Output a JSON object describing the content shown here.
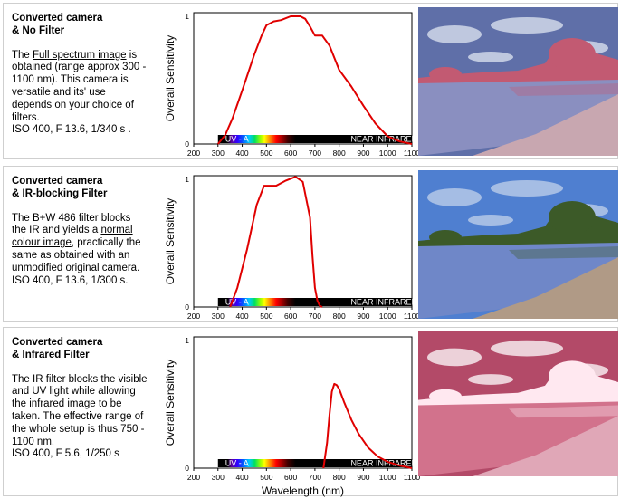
{
  "panels": [
    {
      "title_line1": "Converted camera",
      "title_line2": "& No Filter",
      "text_1": "The ",
      "link": "Full spectrum image",
      "text_2": " is obtained (range approx 300 - 1100 nm). This camera is versatile and its' use depends on your choice of filters.",
      "settings": "ISO 400, F 13.6, 1/340 s ."
    },
    {
      "title_line1": "Converted camera",
      "title_line2": "& IR-blocking Filter",
      "text_1": "The B+W 486 filter blocks the IR and yields a ",
      "link": "normal colour image",
      "text_2": ", practically the same as obtained with an unmodified original camera.",
      "settings": "ISO 400, F 13.6, 1/300 s."
    },
    {
      "title_line1": "Converted camera",
      "title_line2": "& Infrared Filter",
      "text_1": "The IR filter blocks the visible and UV light while allowing the ",
      "link": "infrared image",
      "text_2": " to be taken. The effective range of the whole setup is thus 750 - 1100 nm.",
      "settings": "ISO 400, F 5.6, 1/250 s"
    }
  ],
  "band": {
    "uv_label": "UV - A",
    "ir_label": "NEAR INFRARED"
  },
  "chart_data": [
    {
      "type": "line",
      "ylabel": "Overall Sensitivity",
      "xlabel": "",
      "xlim": [
        200,
        1100
      ],
      "ylim": [
        0,
        1
      ],
      "x_ticks": [
        "200",
        "300",
        "400",
        "500",
        "600",
        "700",
        "800",
        "900",
        "1000",
        "1100"
      ],
      "y_ticks": [
        "0",
        "1"
      ],
      "series": [
        {
          "x": [
            300,
            330,
            360,
            400,
            450,
            480,
            500,
            530,
            560,
            600,
            640,
            660,
            680,
            700,
            730,
            760,
            800,
            850,
            900,
            950,
            1000,
            1050,
            1100
          ],
          "y": [
            0.0,
            0.07,
            0.2,
            0.42,
            0.7,
            0.85,
            0.93,
            0.96,
            0.97,
            1.0,
            1.0,
            0.98,
            0.92,
            0.85,
            0.85,
            0.77,
            0.58,
            0.45,
            0.3,
            0.16,
            0.06,
            0.02,
            0.0
          ]
        }
      ]
    },
    {
      "type": "line",
      "ylabel": "Overall Sensitivity",
      "xlabel": "",
      "xlim": [
        200,
        1100
      ],
      "ylim": [
        0,
        1
      ],
      "x_ticks": [
        "200",
        "300",
        "400",
        "500",
        "600",
        "700",
        "800",
        "900",
        "1000",
        "1100"
      ],
      "y_ticks": [
        "0",
        "1"
      ],
      "series": [
        {
          "x": [
            350,
            380,
            420,
            460,
            490,
            500,
            540,
            580,
            620,
            650,
            680,
            690,
            700,
            710,
            720,
            730
          ],
          "y": [
            0.0,
            0.15,
            0.45,
            0.8,
            0.95,
            0.95,
            0.95,
            0.99,
            1.02,
            0.98,
            0.7,
            0.4,
            0.15,
            0.05,
            0.01,
            0.0
          ]
        }
      ]
    },
    {
      "type": "line",
      "ylabel": "Overall Sensitivity",
      "xlabel": "Wavelength (nm)",
      "xlim": [
        200,
        1100
      ],
      "ylim": [
        0,
        1
      ],
      "x_ticks": [
        "200",
        "300",
        "400",
        "500",
        "600",
        "700",
        "800",
        "900",
        "1000",
        "1100"
      ],
      "y_ticks": [
        "0",
        "1"
      ],
      "series": [
        {
          "x": [
            735,
            750,
            760,
            770,
            780,
            790,
            800,
            820,
            850,
            880,
            920,
            960,
            1000,
            1050,
            1100
          ],
          "y": [
            0.0,
            0.2,
            0.42,
            0.6,
            0.66,
            0.65,
            0.62,
            0.52,
            0.38,
            0.27,
            0.16,
            0.09,
            0.05,
            0.02,
            0.0
          ]
        }
      ]
    }
  ],
  "photos": [
    {
      "name": "full-spectrum-photo",
      "sky": "#5f6fa8",
      "foliage": "#c25a72",
      "water": "#8a8fc0",
      "shore": "#c8a7b0"
    },
    {
      "name": "normal-colour-photo",
      "sky": "#4f7fd0",
      "foliage": "#3c5a28",
      "water": "#6f87c8",
      "shore": "#b09a86"
    },
    {
      "name": "infrared-photo",
      "sky": "#b34a68",
      "foliage": "#ffe8f0",
      "water": "#d2728c",
      "shore": "#e0a7b7"
    }
  ],
  "colors": {
    "curve": "#e00000",
    "panel_border": "#cfcfcf"
  }
}
